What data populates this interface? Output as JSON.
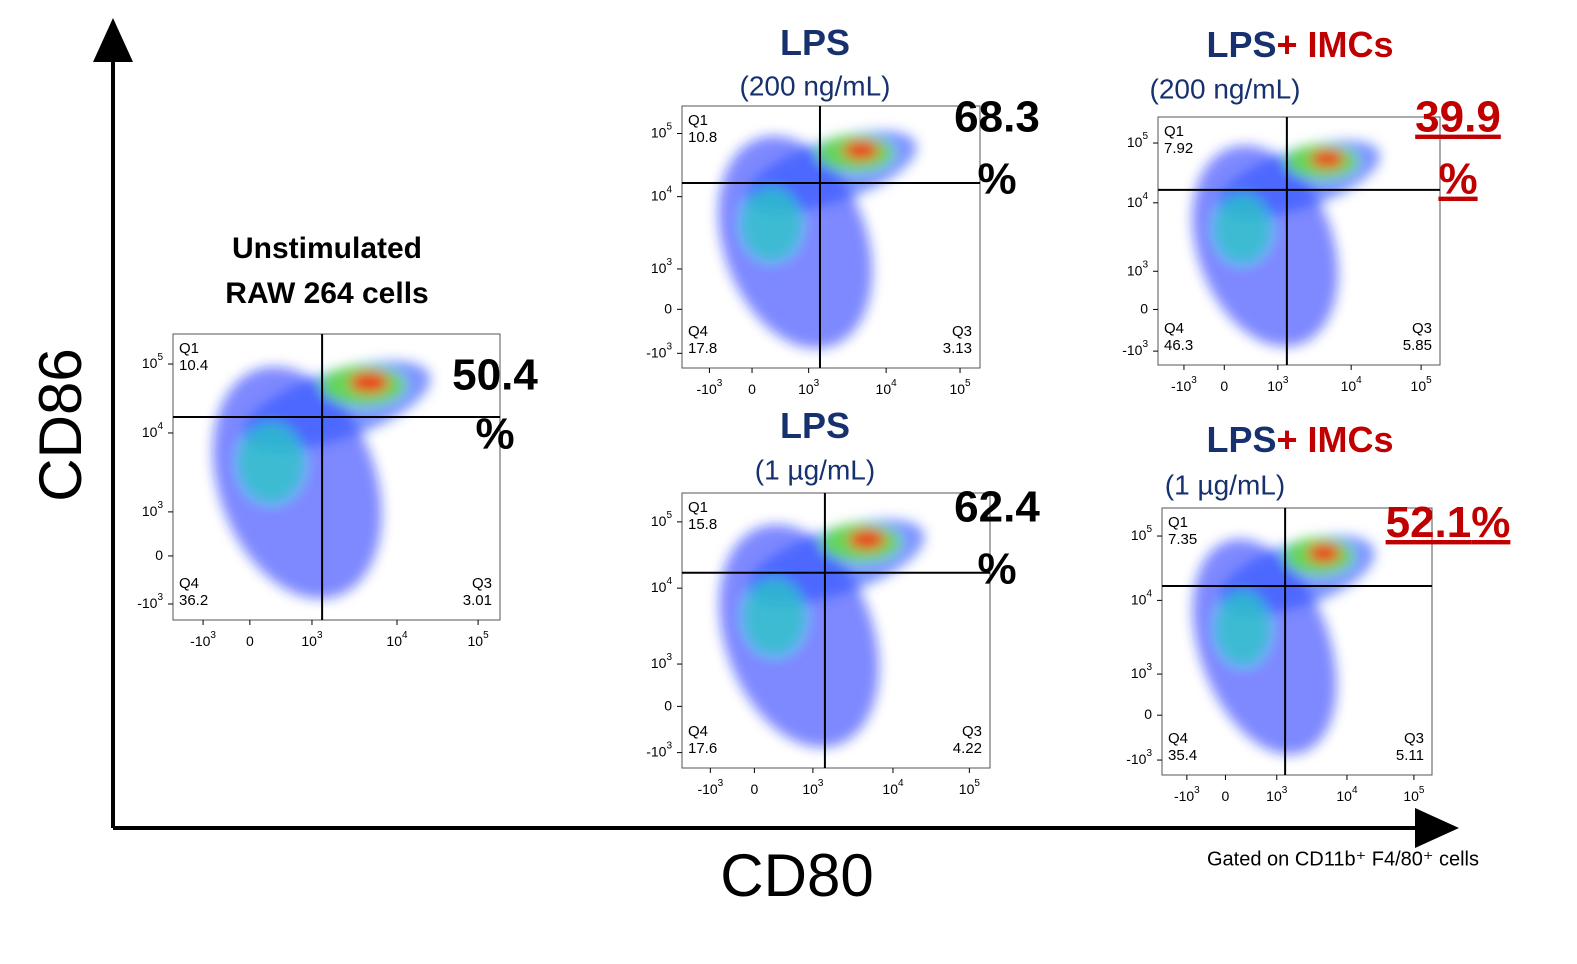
{
  "axes": {
    "y_label": "CD86",
    "x_label": "CD80",
    "note": "Gated on CD11b⁺ F4/80⁺ cells"
  },
  "ticks": [
    {
      "base": "-10",
      "exp": "3"
    },
    {
      "base": "0"
    },
    {
      "base": "10",
      "exp": "3"
    },
    {
      "base": "10",
      "exp": "4"
    },
    {
      "base": "10",
      "exp": "5"
    }
  ],
  "panels": [
    {
      "title_lines": [
        [
          {
            "text": "Unstimulated",
            "color": "#000000"
          }
        ],
        [
          {
            "text": "RAW 264 cells",
            "color": "#000000"
          }
        ]
      ],
      "percent_value": 50.4,
      "percent_sign": "%",
      "percent_color": "#000000",
      "percent_underline": false,
      "quadrants": [
        {
          "label": "Q1",
          "value": 10.4
        },
        {
          "label": "Q4",
          "value": 36.2
        },
        {
          "label": "Q3",
          "value": 3.01
        }
      ]
    },
    {
      "title_lines": [
        [
          {
            "text": "LPS",
            "color": "#17306e"
          }
        ]
      ],
      "subtitle": "(200 ng/mL)",
      "percent_value": 68.3,
      "percent_sign": "%",
      "percent_color": "#000000",
      "percent_underline": false,
      "quadrants": [
        {
          "label": "Q1",
          "value": 10.8
        },
        {
          "label": "Q4",
          "value": 17.8
        },
        {
          "label": "Q3",
          "value": 3.13
        }
      ]
    },
    {
      "title_lines": [
        [
          {
            "text": "LPS",
            "color": "#17306e"
          }
        ]
      ],
      "subtitle": "(1 µg/mL)",
      "percent_value": 62.4,
      "percent_sign": "%",
      "percent_color": "#000000",
      "percent_underline": false,
      "quadrants": [
        {
          "label": "Q1",
          "value": 15.8
        },
        {
          "label": "Q4",
          "value": 17.6
        },
        {
          "label": "Q3",
          "value": 4.22
        }
      ]
    },
    {
      "title_lines": [
        [
          {
            "text": "LPS",
            "color": "#17306e"
          },
          {
            "text": "+ IMCs",
            "color": "#c00000"
          }
        ]
      ],
      "subtitle": "(200 ng/mL)",
      "percent_value": 39.9,
      "percent_sign": "%",
      "percent_color": "#c00000",
      "percent_underline": true,
      "quadrants": [
        {
          "label": "Q1",
          "value": 7.92
        },
        {
          "label": "Q4",
          "value": 46.3
        },
        {
          "label": "Q3",
          "value": 5.85
        }
      ]
    },
    {
      "title_lines": [
        [
          {
            "text": "LPS",
            "color": "#17306e"
          },
          {
            "text": "+ IMCs",
            "color": "#c00000"
          }
        ]
      ],
      "subtitle": "(1 µg/mL)",
      "percent_value": 52.1,
      "percent_sign": "%",
      "percent_color": "#c00000",
      "percent_underline": true,
      "quadrants": [
        {
          "label": "Q1",
          "value": 7.35
        },
        {
          "label": "Q4",
          "value": 35.4
        },
        {
          "label": "Q3",
          "value": 5.11
        }
      ]
    }
  ]
}
